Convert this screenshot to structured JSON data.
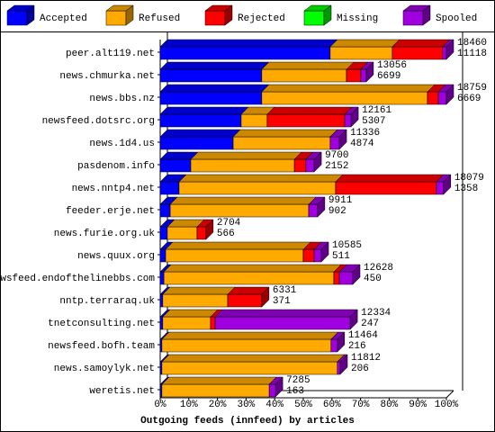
{
  "chart_data": {
    "type": "stacked-bar-3d",
    "title": "Outgoing feeds (innfeed) by articles",
    "categories": [
      "peer.alt119.net",
      "news.chmurka.net",
      "news.bbs.nz",
      "newsfeed.dotsrc.org",
      "news.1d4.us",
      "pasdenom.info",
      "news.nntp4.net",
      "feeder.erje.net",
      "news.furie.org.uk",
      "news.quux.org",
      "newsfeed.endofthelinebbs.com",
      "nntp.terraraq.uk",
      "tnetconsulting.net",
      "newsfeed.bofh.team",
      "news.samoylyk.net",
      "weretis.net"
    ],
    "series": [
      {
        "name": "Accepted",
        "color": "#0000ff",
        "values": [
          59.4,
          35.5,
          35.5,
          28.3,
          25.5,
          10.7,
          6.6,
          3.5,
          2.5,
          1.9,
          1.3,
          0.9,
          0.9,
          0.6,
          0.6,
          0.6
        ]
      },
      {
        "name": "Refused",
        "color": "#ffaa00",
        "values": [
          21.7,
          29.6,
          57.9,
          9.1,
          33.9,
          36.2,
          54.7,
          48.4,
          10.4,
          48.1,
          59.4,
          22.7,
          16.7,
          59.1,
          61.3,
          37.5
        ]
      },
      {
        "name": "Rejected",
        "color": "#ff0000",
        "values": [
          17.6,
          5.0,
          3.8,
          27.1,
          0,
          4.0,
          35.2,
          0,
          3.1,
          3.8,
          1.9,
          11.9,
          1.6,
          0,
          0,
          0
        ]
      },
      {
        "name": "Missing",
        "color": "#00ff00",
        "values": [
          0,
          0,
          0,
          0,
          0,
          0,
          0,
          0,
          0,
          0,
          0,
          0,
          0,
          0,
          0,
          0
        ]
      },
      {
        "name": "Spooled",
        "color": "#a000e0",
        "values": [
          1.3,
          1.9,
          2.8,
          2.2,
          3.2,
          2.9,
          2.5,
          3.1,
          0,
          2.5,
          4.7,
          0,
          47.2,
          2.2,
          1.0,
          2.2
        ]
      }
    ],
    "bar_labels": [
      [
        18460,
        11118
      ],
      [
        13056,
        6699
      ],
      [
        18759,
        6669
      ],
      [
        12161,
        5307
      ],
      [
        11336,
        4874
      ],
      [
        9700,
        2152
      ],
      [
        18079,
        1358
      ],
      [
        9911,
        902
      ],
      [
        2704,
        566
      ],
      [
        10585,
        511
      ],
      [
        12628,
        450
      ],
      [
        6331,
        371
      ],
      [
        12334,
        247
      ],
      [
        11464,
        216
      ],
      [
        11812,
        206
      ],
      [
        7285,
        163
      ]
    ],
    "xlim": [
      0,
      100
    ],
    "xticks": [
      {
        "value": 0,
        "label": "0%"
      },
      {
        "value": 10,
        "label": "10%"
      },
      {
        "value": 20,
        "label": "20%"
      },
      {
        "value": 30,
        "label": "30%"
      },
      {
        "value": 40,
        "label": "40%"
      },
      {
        "value": 50,
        "label": "50%"
      },
      {
        "value": 60,
        "label": "60%"
      },
      {
        "value": 70,
        "label": "70%"
      },
      {
        "value": 80,
        "label": "80%"
      },
      {
        "value": 90,
        "label": "90%"
      },
      {
        "value": 100,
        "label": "100%"
      }
    ]
  }
}
